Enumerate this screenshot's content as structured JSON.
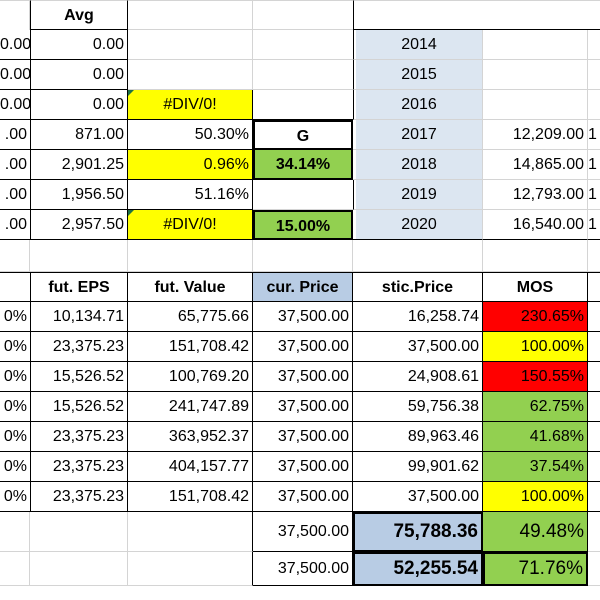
{
  "top": {
    "avg_header": "Avg",
    "rows": [
      {
        "a": "0.00",
        "avg": "0.00",
        "pct": "",
        "g": "",
        "year": "2014",
        "val": "",
        "tail": ""
      },
      {
        "a": "0.00",
        "avg": "0.00",
        "pct": "",
        "g": "",
        "year": "2015",
        "val": "",
        "tail": ""
      },
      {
        "a": "0.00",
        "avg": "0.00",
        "pct": "#DIV/0!",
        "g": "",
        "year": "2016",
        "val": "",
        "tail": ""
      },
      {
        "a": ".00",
        "avg": "871.00",
        "pct": "50.30%",
        "g": "G",
        "year": "2017",
        "val": "12,209.00",
        "tail": "1"
      },
      {
        "a": ".00",
        "avg": "2,901.25",
        "pct": "0.96%",
        "g": "34.14%",
        "year": "2018",
        "val": "14,865.00",
        "tail": "1"
      },
      {
        "a": ".00",
        "avg": "1,956.50",
        "pct": "51.16%",
        "g": "",
        "year": "2019",
        "val": "12,793.00",
        "tail": "1"
      },
      {
        "a": ".00",
        "avg": "2,957.50",
        "pct": "#DIV/0!",
        "g": "15.00%",
        "year": "2020",
        "val": "16,540.00",
        "tail": "1"
      }
    ]
  },
  "bottom": {
    "headers": {
      "fut_eps": "fut. EPS",
      "fut_value": "fut. Value",
      "cur_price": "cur. Price",
      "stic_price": "stic.Price",
      "mos": "MOS"
    },
    "rows": [
      {
        "a": "0%",
        "eps": "10,134.71",
        "fv": "65,775.66",
        "cp": "37,500.00",
        "sp": "16,258.74",
        "mos": "230.65%"
      },
      {
        "a": "0%",
        "eps": "23,375.23",
        "fv": "151,708.42",
        "cp": "37,500.00",
        "sp": "37,500.00",
        "mos": "100.00%"
      },
      {
        "a": "0%",
        "eps": "15,526.52",
        "fv": "100,769.20",
        "cp": "37,500.00",
        "sp": "24,908.61",
        "mos": "150.55%"
      },
      {
        "a": "0%",
        "eps": "15,526.52",
        "fv": "241,747.89",
        "cp": "37,500.00",
        "sp": "59,756.38",
        "mos": "62.75%"
      },
      {
        "a": "0%",
        "eps": "23,375.23",
        "fv": "363,952.37",
        "cp": "37,500.00",
        "sp": "89,963.46",
        "mos": "41.68%"
      },
      {
        "a": "0%",
        "eps": "23,375.23",
        "fv": "404,157.77",
        "cp": "37,500.00",
        "sp": "99,901.62",
        "mos": "37.54%"
      },
      {
        "a": "0%",
        "eps": "23,375.23",
        "fv": "151,708.42",
        "cp": "37,500.00",
        "sp": "37,500.00",
        "mos": "100.00%"
      }
    ],
    "summary": [
      {
        "cp": "37,500.00",
        "sp": "75,788.36",
        "mos": "49.48%"
      },
      {
        "cp": "37,500.00",
        "sp": "52,255.54",
        "mos": "71.76%"
      }
    ]
  },
  "colors": {
    "yellow": "#ffff00",
    "green": "#92d050",
    "red": "#ff0000",
    "year_blue": "#dce6f1",
    "header_blue": "#b8cce4"
  }
}
